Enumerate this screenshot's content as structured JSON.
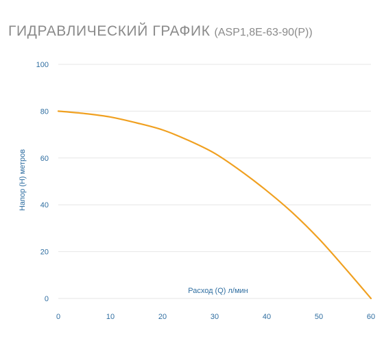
{
  "header": {
    "title": "ГИДРАВЛИЧЕСКИЙ ГРАФИК",
    "model": "(ASP1,8E-63-90(P))"
  },
  "chart_data": {
    "type": "line",
    "xlabel": "Расход (Q) л/мин",
    "ylabel": "Напор (H) метров",
    "xlim": [
      0,
      60
    ],
    "ylim": [
      0,
      100
    ],
    "x_ticks": [
      "0",
      "10",
      "20",
      "30",
      "40",
      "50",
      "60"
    ],
    "y_ticks": [
      "0",
      "20",
      "40",
      "60",
      "80",
      "100"
    ],
    "grid": "horizontal",
    "series": [
      {
        "color": "#f0a020",
        "x": [
          0,
          5,
          10,
          15,
          20,
          25,
          30,
          35,
          40,
          45,
          50,
          55,
          60
        ],
        "y": [
          80,
          79,
          77.5,
          75,
          72,
          67.5,
          62,
          54.5,
          46,
          36.5,
          25.5,
          13,
          0
        ]
      }
    ]
  }
}
